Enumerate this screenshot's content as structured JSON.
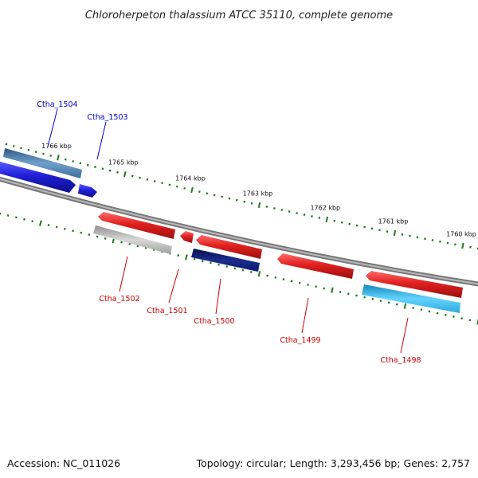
{
  "title": "Chloroherpeton thalassium ATCC 35110, complete genome",
  "footer": {
    "accession": "Accession: NC_011026",
    "summary": "Topology: circular; Length: 3,293,456 bp; Genes: 2,757"
  },
  "ruler_ticks": [
    {
      "label": "1766 kbp",
      "major": true
    },
    {
      "label": "1765 kbp",
      "major": true
    },
    {
      "label": "1764 kbp",
      "major": true
    },
    {
      "label": "1763 kbp",
      "major": true
    },
    {
      "label": "1762 kbp",
      "major": true
    },
    {
      "label": "1761 kbp",
      "major": true
    },
    {
      "label": "1760 kbp",
      "major": true
    }
  ],
  "genes": [
    {
      "label": "Ctha_1504",
      "strand": "forward",
      "color": "#1f1fd6",
      "track_color": "#4a7fb0"
    },
    {
      "label": "Ctha_1503",
      "strand": "forward",
      "color": "#1f1fd6"
    },
    {
      "label": "Ctha_1502",
      "strand": "reverse",
      "color": "#e0201f",
      "track_color": "#b5b5b5"
    },
    {
      "label": "Ctha_1501",
      "strand": "reverse",
      "color": "#e0201f"
    },
    {
      "label": "Ctha_1500",
      "strand": "reverse",
      "color": "#e0201f",
      "track_color": "#0b1a6e"
    },
    {
      "label": "Ctha_1499",
      "strand": "reverse",
      "color": "#e0201f"
    },
    {
      "label": "Ctha_1498",
      "strand": "reverse",
      "color": "#e0201f",
      "track_color": "#2aa9dc"
    }
  ],
  "colors": {
    "forward_label": "#0000cc",
    "reverse_label": "#cc0000",
    "ruler": "#1a7a1a",
    "backbone": "#8a8a8a"
  }
}
